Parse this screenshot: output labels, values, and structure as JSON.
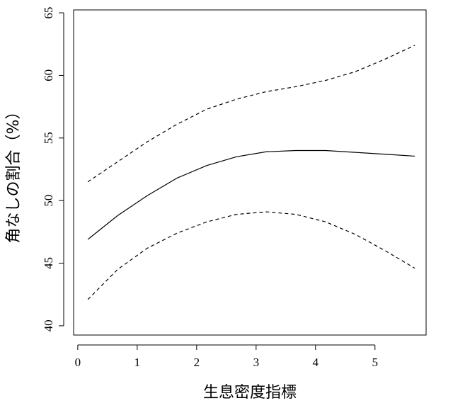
{
  "chart_data": {
    "type": "line",
    "x_label": "生息密度指標",
    "y_label": "角なしの割合（%）",
    "x": [
      0.17,
      0.67,
      1.17,
      1.67,
      2.17,
      2.67,
      3.17,
      3.67,
      4.17,
      4.67,
      5.17,
      5.67
    ],
    "series": [
      {
        "color": "#000000",
        "dash": false,
        "values": [
          46.9,
          48.8,
          50.4,
          51.8,
          52.8,
          53.5,
          53.9,
          54.0,
          54.0,
          53.85,
          53.7,
          53.55
        ]
      },
      {
        "color": "#000000",
        "dash": true,
        "values": [
          51.5,
          53.1,
          54.7,
          56.1,
          57.3,
          58.1,
          58.7,
          59.1,
          59.6,
          60.3,
          61.3,
          62.4
        ]
      },
      {
        "color": "#000000",
        "dash": true,
        "values": [
          42.1,
          44.5,
          46.2,
          47.4,
          48.3,
          48.9,
          49.1,
          48.9,
          48.3,
          47.3,
          46.0,
          44.6
        ]
      }
    ],
    "xlim": [
      -0.07,
      5.86
    ],
    "xticks": [
      0,
      1,
      2,
      3,
      4,
      5
    ],
    "ylim": [
      39.26,
      65.23
    ],
    "yticks": [
      40,
      45,
      50,
      55,
      60,
      65
    ]
  }
}
